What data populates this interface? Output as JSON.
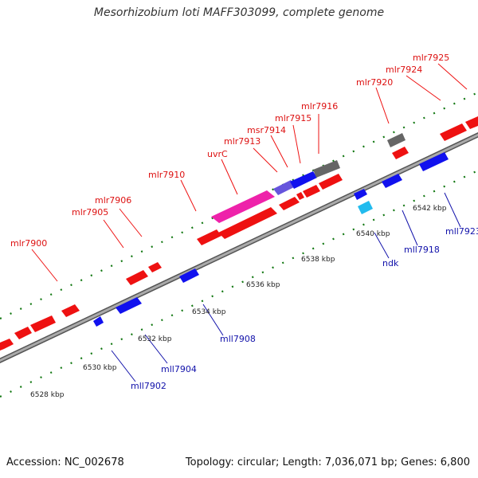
{
  "title": "Mesorhizobium loti MAFF303099, complete genome",
  "accession": "Accession: NC_002678",
  "summary": "Topology: circular; Length: 7,036,071 bp; Genes: 6,800",
  "colors": {
    "forward": "#ee1111",
    "reverse": "#1111ee",
    "pink": "#ee22aa",
    "purple": "#6655dd",
    "grey": "#666666",
    "cyan": "#22bbee",
    "backbone": "#999999",
    "tick": "#117711"
  },
  "kbp_labels": [
    "6528 kbp",
    "6530 kbp",
    "6532 kbp",
    "6534 kbp",
    "6536 kbp",
    "6538 kbp",
    "6540 kbp",
    "6542 kbp"
  ],
  "forward_labels": [
    "mlr7900",
    "mlr7905",
    "mlr7906",
    "mlr7910",
    "uvrC",
    "mlr7913",
    "msr7914",
    "mlr7915",
    "mlr7916",
    "mlr7920",
    "mlr7924",
    "mlr7925"
  ],
  "reverse_labels": [
    "mll7902",
    "mll7904",
    "mll7908",
    "ndk",
    "mll7918",
    "mll7923"
  ]
}
